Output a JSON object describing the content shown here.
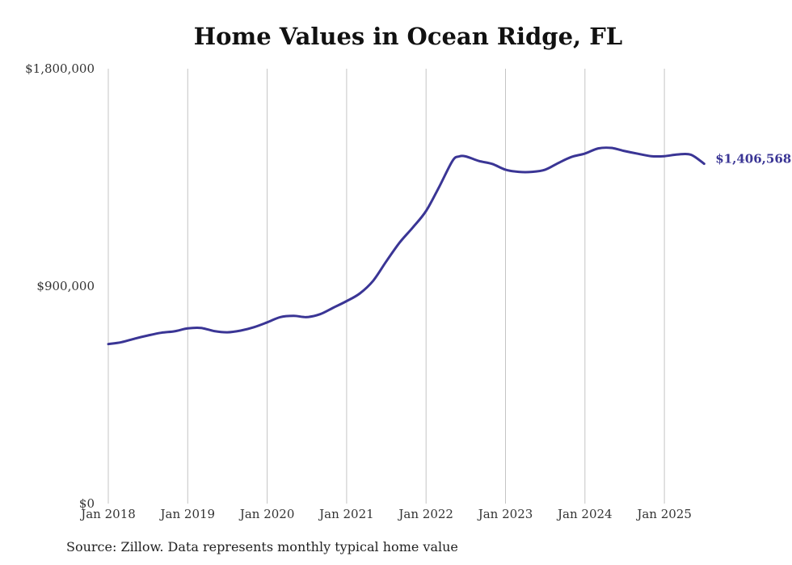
{
  "chart_data": {
    "type": "line",
    "title": "Home Values in Ocean Ridge, FL",
    "xlabel": "",
    "ylabel": "",
    "ylim": [
      0,
      1800000
    ],
    "yticks": [
      {
        "value": 0,
        "label": "$0"
      },
      {
        "value": 900000,
        "label": "$900,000"
      },
      {
        "value": 1800000,
        "label": "$1,800,000"
      }
    ],
    "xticks": [
      {
        "value": 2018.0,
        "label": "Jan 2018"
      },
      {
        "value": 2019.0,
        "label": "Jan 2019"
      },
      {
        "value": 2020.0,
        "label": "Jan 2020"
      },
      {
        "value": 2021.0,
        "label": "Jan 2021"
      },
      {
        "value": 2022.0,
        "label": "Jan 2022"
      },
      {
        "value": 2023.0,
        "label": "Jan 2023"
      },
      {
        "value": 2024.0,
        "label": "Jan 2024"
      },
      {
        "value": 2025.0,
        "label": "Jan 2025"
      }
    ],
    "xlim": [
      2018.0,
      2025.5
    ],
    "grid": "vertical",
    "line_color": "#3a3595",
    "series": [
      {
        "x": [
          "2018-01",
          "2018-03",
          "2018-05",
          "2018-07",
          "2018-09",
          "2018-11",
          "2019-01",
          "2019-03",
          "2019-05",
          "2019-07",
          "2019-09",
          "2019-11",
          "2020-01",
          "2020-03",
          "2020-05",
          "2020-07",
          "2020-09",
          "2020-11",
          "2021-01",
          "2021-03",
          "2021-05",
          "2021-07",
          "2021-09",
          "2021-11",
          "2022-01",
          "2022-03",
          "2022-05",
          "2022-06",
          "2022-07",
          "2022-09",
          "2022-11",
          "2023-01",
          "2023-03",
          "2023-05",
          "2023-07",
          "2023-09",
          "2023-11",
          "2024-01",
          "2024-03",
          "2024-05",
          "2024-07",
          "2024-09",
          "2024-11",
          "2025-01",
          "2025-03",
          "2025-05",
          "2025-07"
        ],
        "values": [
          660000,
          668000,
          683000,
          696000,
          707000,
          713000,
          725000,
          727000,
          714000,
          709000,
          716000,
          730000,
          750000,
          772000,
          777000,
          772000,
          784000,
          811000,
          838000,
          870000,
          922000,
          1003000,
          1080000,
          1143000,
          1211000,
          1312000,
          1419000,
          1437000,
          1437000,
          1418000,
          1406000,
          1382000,
          1373000,
          1373000,
          1382000,
          1410000,
          1435000,
          1449000,
          1470000,
          1472000,
          1459000,
          1448000,
          1438000,
          1438000,
          1445000,
          1444000,
          1406568
        ]
      }
    ],
    "end_label": "$1,406,568"
  },
  "footer": {
    "source": "Source: Zillow. Data represents monthly typical home value"
  }
}
